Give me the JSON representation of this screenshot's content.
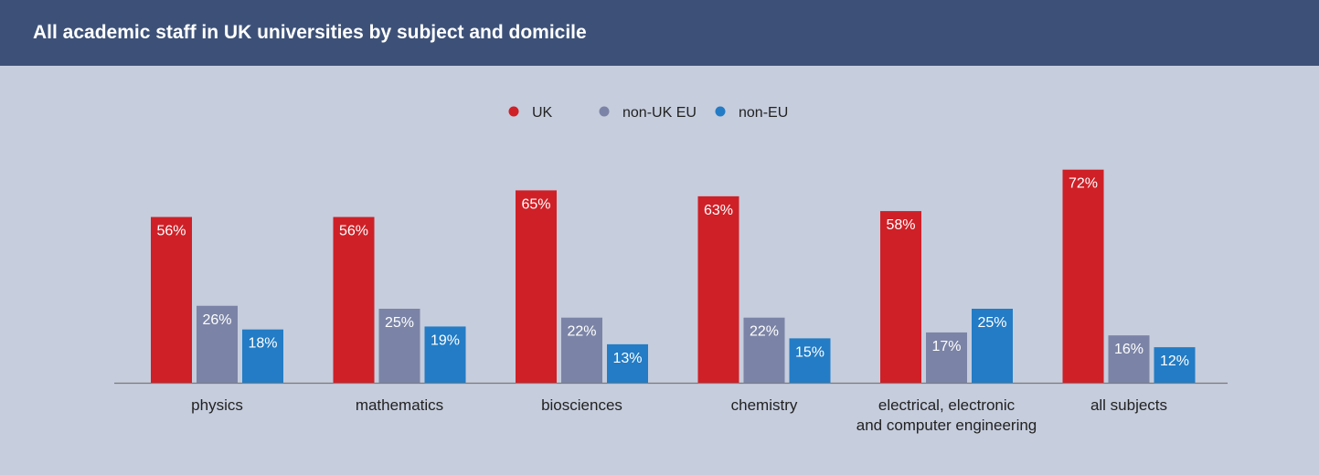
{
  "header": {
    "title": "All academic staff in UK universities by subject and domicile"
  },
  "chart_data": {
    "type": "bar",
    "categories": [
      [
        "physics"
      ],
      [
        "mathematics"
      ],
      [
        "biosciences"
      ],
      [
        "chemistry"
      ],
      [
        "electrical, electronic",
        "and computer engineering"
      ],
      [
        "all subjects"
      ]
    ],
    "series": [
      {
        "name": "UK",
        "color": "#cf2027",
        "values": [
          56,
          56,
          65,
          63,
          58,
          72
        ]
      },
      {
        "name": "non-UK EU",
        "color": "#7b84a6",
        "values": [
          26,
          25,
          22,
          22,
          17,
          16
        ]
      },
      {
        "name": "non-EU",
        "color": "#237cc5",
        "values": [
          18,
          19,
          13,
          15,
          25,
          12
        ]
      }
    ],
    "value_suffix": "%",
    "ylim": [
      0,
      75
    ],
    "grid": false,
    "legend_position": "top-center",
    "colors": {
      "header": "#3d5178",
      "background": "#c6cddd",
      "axis": "#7a7a7a"
    }
  }
}
